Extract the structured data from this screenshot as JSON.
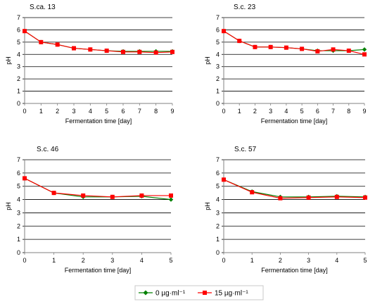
{
  "chart_data": [
    {
      "type": "line",
      "title": "S.ca. 13",
      "xlabel": "Fermentation time [day]",
      "ylabel": "pH",
      "xlim": [
        0,
        9
      ],
      "ylim": [
        0,
        7
      ],
      "x": [
        0,
        1,
        2,
        3,
        4,
        5,
        6,
        7,
        8,
        9
      ],
      "series": [
        {
          "name": "0 µg·ml⁻¹",
          "color": "#008000",
          "values": [
            5.9,
            5.0,
            4.8,
            4.5,
            4.4,
            4.3,
            4.25,
            4.25,
            4.25,
            4.25
          ]
        },
        {
          "name": "15 µg·ml⁻¹",
          "color": "#ff0000",
          "values": [
            5.9,
            5.0,
            4.8,
            4.5,
            4.4,
            4.3,
            4.2,
            4.2,
            4.15,
            4.2
          ]
        }
      ]
    },
    {
      "type": "line",
      "title": "S.c. 23",
      "xlabel": "Fermentation time [day]",
      "ylabel": "pH",
      "xlim": [
        0,
        9
      ],
      "ylim": [
        0,
        7
      ],
      "x": [
        0,
        1,
        2,
        3,
        4,
        5,
        6,
        7,
        8,
        9
      ],
      "series": [
        {
          "name": "0 µg·ml⁻¹",
          "color": "#008000",
          "values": [
            5.9,
            5.1,
            4.6,
            4.6,
            4.55,
            4.45,
            4.3,
            4.3,
            4.3,
            4.4
          ]
        },
        {
          "name": "15 µg·ml⁻¹",
          "color": "#ff0000",
          "values": [
            5.9,
            5.1,
            4.6,
            4.6,
            4.55,
            4.45,
            4.25,
            4.4,
            4.3,
            4.0
          ]
        }
      ]
    },
    {
      "type": "line",
      "title": "S.c. 46",
      "xlabel": "Fermentation time [day]",
      "ylabel": "pH",
      "xlim": [
        0,
        5
      ],
      "ylim": [
        0,
        7
      ],
      "x": [
        0,
        1,
        2,
        3,
        4,
        5
      ],
      "series": [
        {
          "name": "0 µg·ml⁻¹",
          "color": "#008000",
          "values": [
            5.6,
            4.5,
            4.2,
            4.2,
            4.25,
            4.0
          ]
        },
        {
          "name": "15 µg·ml⁻¹",
          "color": "#ff0000",
          "values": [
            5.6,
            4.5,
            4.3,
            4.2,
            4.3,
            4.3
          ]
        }
      ]
    },
    {
      "type": "line",
      "title": "S.c. 57",
      "xlabel": "Fermentation time [day]",
      "ylabel": "pH",
      "xlim": [
        0,
        5
      ],
      "ylim": [
        0,
        7
      ],
      "x": [
        0,
        1,
        2,
        3,
        4,
        5
      ],
      "series": [
        {
          "name": "0 µg·ml⁻¹",
          "color": "#008000",
          "values": [
            5.5,
            4.6,
            4.2,
            4.2,
            4.25,
            4.2
          ]
        },
        {
          "name": "15 µg·ml⁻¹",
          "color": "#ff0000",
          "values": [
            5.5,
            4.55,
            4.1,
            4.15,
            4.2,
            4.15
          ]
        }
      ]
    }
  ],
  "legend": {
    "position": "bottom-center",
    "items": [
      {
        "label": "0 µg·ml⁻¹",
        "color": "#008000",
        "marker": "diamond"
      },
      {
        "label": "15 µg·ml⁻¹",
        "color": "#ff0000",
        "marker": "square"
      }
    ]
  }
}
